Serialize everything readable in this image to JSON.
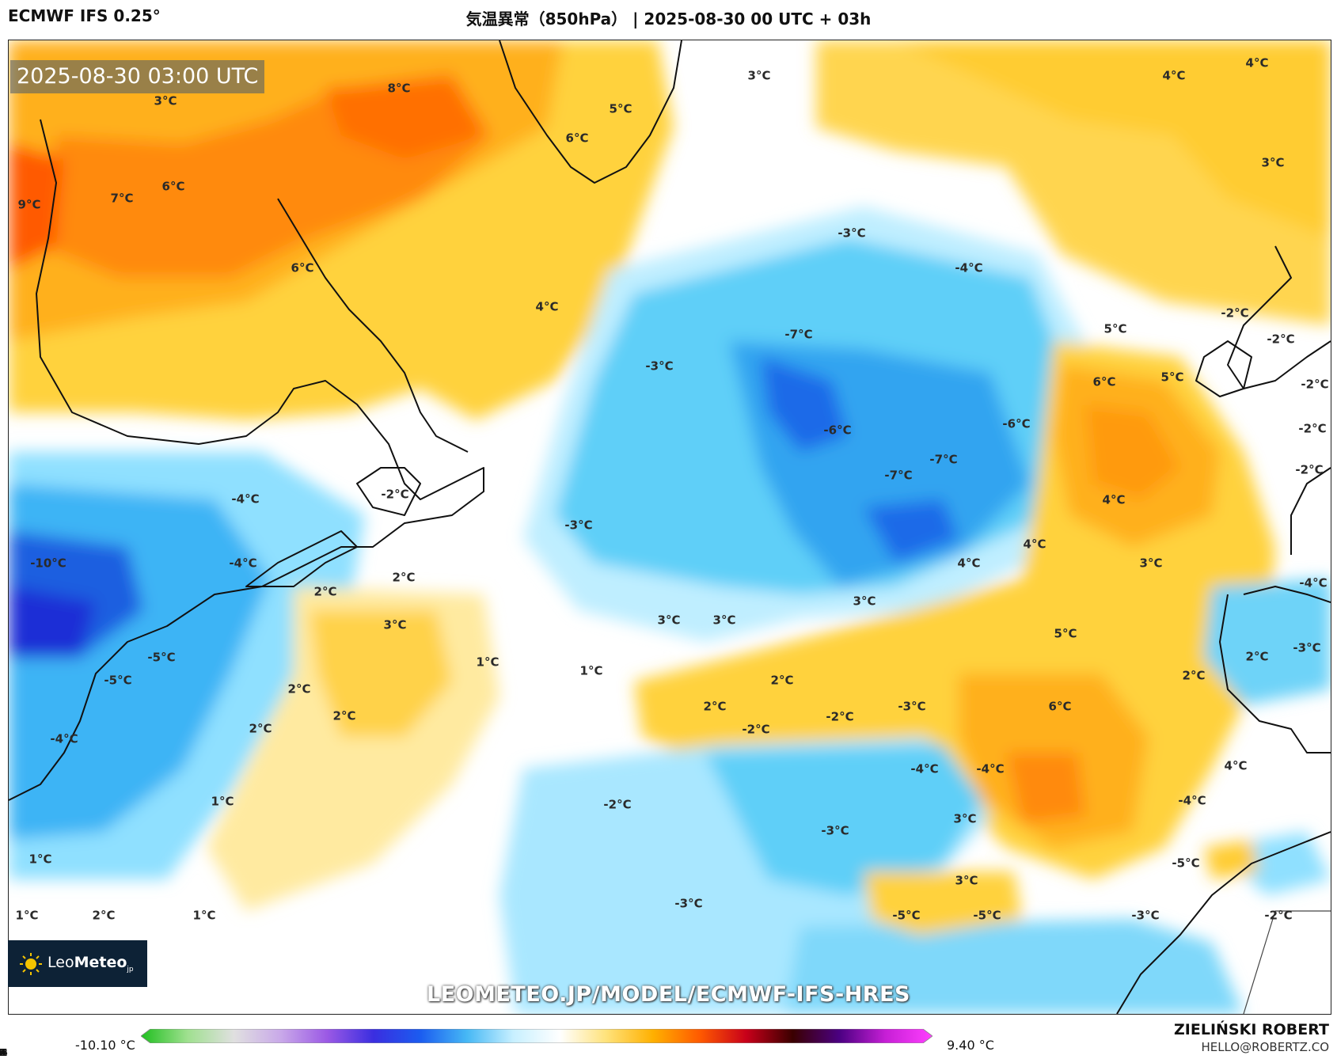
{
  "header": {
    "model": "ECMWF IFS 0.25°",
    "title": "気温異常（850hPa） | 2025-08-30 00 UTC + 03h"
  },
  "map": {
    "timestamp": "2025-08-30 03:00 UTC",
    "watermark": "LEOMETEO.JP/MODEL/ECMWF-IFS-HRES",
    "contour_labels": [
      "3°C",
      "8°C",
      "5°C",
      "6°C",
      "3°C",
      "4°C",
      "4°C",
      "9°C",
      "7°C",
      "6°C",
      "3°C",
      "6°C",
      "4°C",
      "-3°C",
      "-4°C",
      "-7°C",
      "-3°C",
      "-6°C",
      "-6°C",
      "-7°C",
      "-7°C",
      "5°C",
      "6°C",
      "5°C",
      "-2°C",
      "-2°C",
      "-2°C",
      "-2°C",
      "-2°C",
      "-4°C",
      "-2°C",
      "-3°C",
      "4°C",
      "4°C",
      "4°C",
      "3°C",
      "-10°C",
      "-4°C",
      "2°C",
      "2°C",
      "3°C",
      "3°C",
      "3°C",
      "3°C",
      "-5°C",
      "-5°C",
      "1°C",
      "1°C",
      "2°C",
      "2°C",
      "5°C",
      "2°C",
      "-3°C",
      "2°C",
      "2°C",
      "-3°C",
      "-2°C",
      "6°C",
      "2°C",
      "2°C",
      "-4°C",
      "-2°C",
      "-4°C",
      "-4°C",
      "4°C",
      "1°C",
      "-2°C",
      "3°C",
      "-4°C",
      "-3°C",
      "1°C",
      "-3°C",
      "1°C",
      "2°C",
      "1°C",
      "-5°C",
      "-5°C",
      "-3°C",
      "-2°C",
      "-5°C",
      "-4°C",
      "3°C"
    ]
  },
  "logo": {
    "prefix": "Leo",
    "brand": "Meteo",
    "suffix": "jp"
  },
  "colorbar": {
    "min_label": "-10.10 °C",
    "max_label": "9.40 °C",
    "ticks": [
      "-32",
      "-24",
      "-16",
      "-8",
      "0",
      "8",
      "16",
      "24",
      "32"
    ],
    "range": [
      -32,
      32
    ],
    "colors": [
      "#1fbf1f",
      "#9fe08f",
      "#e0e0e0",
      "#c9a9e9",
      "#9b59e5",
      "#3a2ee0",
      "#1b5cf0",
      "#46b8f5",
      "#c8f0ff",
      "#ffffff",
      "#ffe27a",
      "#ffb000",
      "#ff5a00",
      "#c8001a",
      "#3a0000",
      "#4b0082",
      "#c71fd6",
      "#ff3fff"
    ]
  },
  "credit": {
    "author": "ZIELIŃSKI ROBERT",
    "email": "HELLO@ROBERTZ.CO"
  }
}
